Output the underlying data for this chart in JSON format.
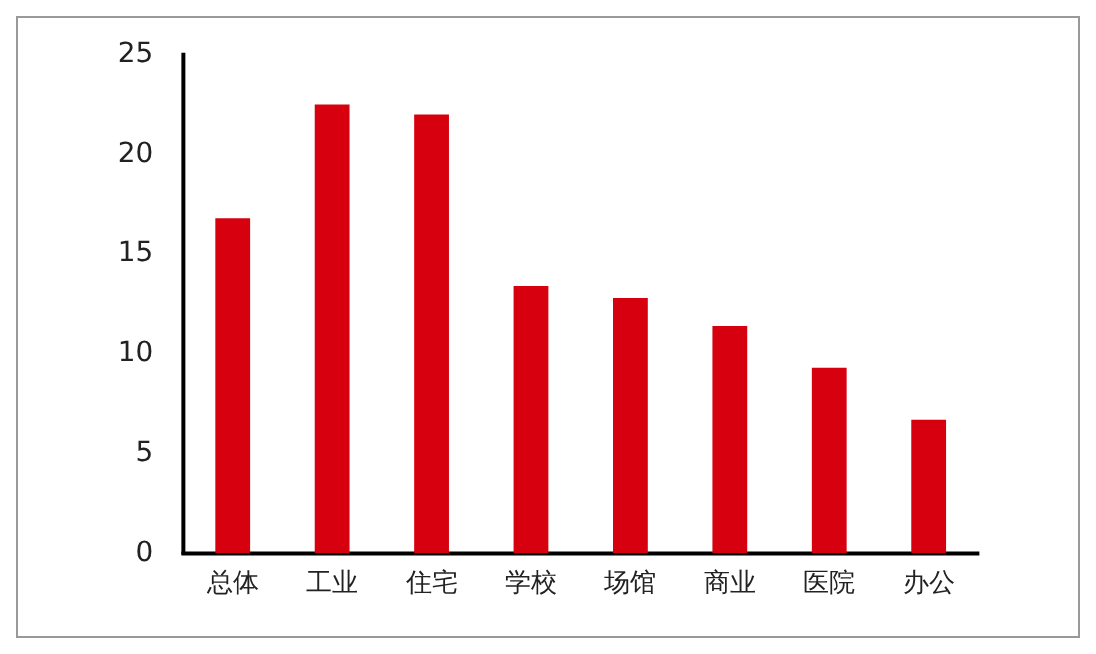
{
  "chart_data": {
    "type": "bar",
    "categories": [
      "总体",
      "工业",
      "住宅",
      "学校",
      "场馆",
      "商业",
      "医院",
      "办公"
    ],
    "values": [
      16.8,
      22.5,
      22.0,
      13.4,
      12.8,
      11.4,
      9.3,
      6.7
    ],
    "color": "#d7000f",
    "ylim": [
      0,
      25
    ],
    "yticks": [
      0,
      5,
      10,
      15,
      20,
      25
    ],
    "grid": false,
    "legend": false
  }
}
